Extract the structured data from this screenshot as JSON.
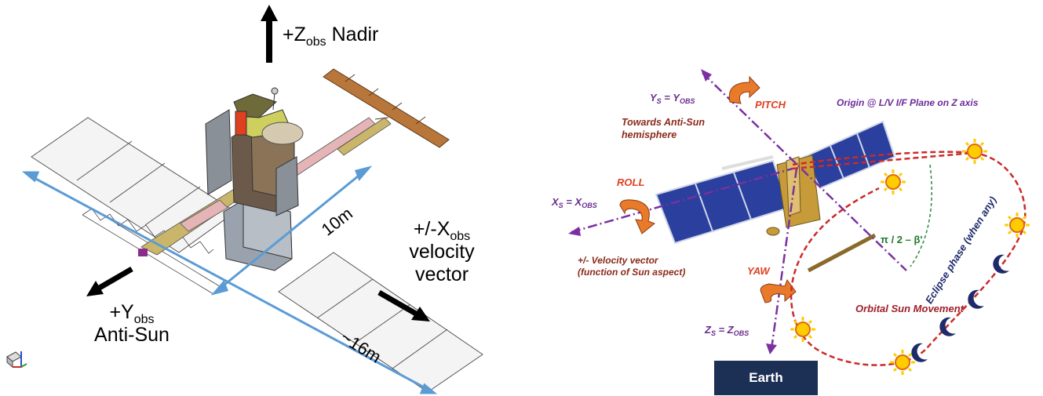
{
  "left": {
    "z_axis": {
      "prefix": "+Z",
      "sub": "obs",
      "suffix": " Nadir"
    },
    "x_axis": {
      "line1_prefix": "+/-X",
      "line1_sub": "obs",
      "line2": "velocity",
      "line3": "vector"
    },
    "y_axis": {
      "line1_prefix": "+Y",
      "line1_sub": "obs",
      "line2": "Anti-Sun"
    },
    "dim_10m": "10m",
    "dim_16m": "~16m"
  },
  "right": {
    "ys": {
      "a": "Y",
      "a_sub": "S",
      "eq": " = Y",
      "b_sub": "OBS"
    },
    "xs": {
      "a": "X",
      "a_sub": "S",
      "eq": " = X",
      "b_sub": "OBS"
    },
    "zs": {
      "a": "Z",
      "a_sub": "S",
      "eq": " = Z",
      "b_sub": "OBS"
    },
    "pitch": "PITCH",
    "roll": "ROLL",
    "yaw": "YAW",
    "origin": "Origin @ L/V I/F Plane on Z axis",
    "anti_sun": "Towards Anti-Sun hemisphere",
    "velocity_line1": "+/- Velocity vector",
    "velocity_line2": "(function of Sun aspect)",
    "angle": "π / 2 – β'",
    "orbital": "Orbital Sun Movement",
    "eclipse": "Eclipse phase (when any)",
    "earth": "Earth"
  },
  "colors": {
    "dim_line": "#5b9bd5",
    "axis_purple": "#7a30a0",
    "orbit_red": "#cc2a2a",
    "panel_blue": "#2a3f9e",
    "earth_navy": "#1c2f55",
    "sun_yellow": "#ffcc00",
    "moon_navy": "#1f2a6b"
  }
}
